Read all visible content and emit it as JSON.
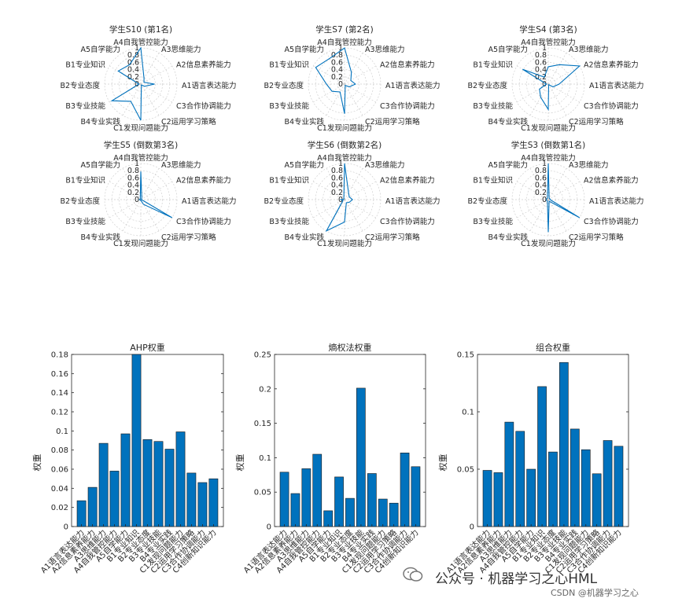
{
  "radar_axes": [
    "A4自我管控能力",
    "A3思维能力",
    "A2信息素养能力",
    "A1语言表达能力",
    "C3合作协调能力",
    "C2运用学习策略",
    "C1发现问题能力",
    "B4专业实践",
    "B3专业技能",
    "B2专业态度",
    "B1专业知识",
    "A5自学能力"
  ],
  "radar_ticks": [
    "1",
    "0.8",
    "0.6",
    "0.4",
    "0.2",
    "0"
  ],
  "bar_categories": [
    "A1语言表达能力",
    "A2信息素养能力",
    "A3思维能力",
    "A4自我管控能力",
    "A5自学能力",
    "B1专业知识",
    "B2专业态度",
    "B3专业技能",
    "B4专业实践",
    "C1发现问题能力",
    "C2运用学习策略",
    "C3合作协调能力",
    "C4创新知识能力"
  ],
  "chart_data": [
    {
      "type": "radar",
      "title": "学生S10 (第1名)",
      "values": [
        1.0,
        0.18,
        0.1,
        0.38,
        0.12,
        0.03,
        1.0,
        0.55,
        0.92,
        0.05,
        0.72,
        0.62
      ],
      "color": "#0072BD"
    },
    {
      "type": "radar",
      "title": "学生S7 (第2名)",
      "values": [
        1.0,
        0.38,
        0.2,
        0.3,
        0.15,
        0.04,
        0.82,
        0.25,
        0.4,
        0.5,
        0.92,
        0.82
      ],
      "color": "#0072BD"
    },
    {
      "type": "radar",
      "title": "学生S4 (第3名)",
      "values": [
        0.48,
        0.62,
        1.0,
        0.3,
        0.15,
        0.02,
        0.7,
        0.42,
        0.28,
        0.05,
        0.82,
        0.22
      ],
      "color": "#0072BD"
    },
    {
      "type": "radar",
      "title": "学生S5 (倒数第3名)",
      "values": [
        0.78,
        0.05,
        0.02,
        0.02,
        1.0,
        0.15,
        0.02,
        0.02,
        0.02,
        0.04,
        0.02,
        0.03
      ],
      "color": "#0072BD"
    },
    {
      "type": "radar",
      "title": "学生S6 (倒数第2名)",
      "values": [
        1.0,
        0.22,
        0.15,
        0.22,
        0.15,
        0.1,
        0.62,
        1.0,
        0.05,
        0.1,
        0.02,
        0.04
      ],
      "color": "#0072BD"
    },
    {
      "type": "radar",
      "title": "学生S3 (倒数第1名)",
      "values": [
        1.0,
        0.05,
        0.05,
        0.05,
        1.0,
        0.05,
        0.9,
        0.05,
        0.05,
        0.05,
        0.05,
        0.05
      ],
      "color": "#0072BD"
    },
    {
      "type": "bar",
      "title": "AHP权重",
      "ylabel": "权重",
      "ylim": [
        0,
        0.18
      ],
      "ticks": [
        0,
        0.02,
        0.04,
        0.06,
        0.08,
        0.1,
        0.12,
        0.14,
        0.16,
        0.18
      ],
      "values": [
        0.027,
        0.041,
        0.087,
        0.058,
        0.097,
        0.18,
        0.091,
        0.089,
        0.081,
        0.099,
        0.056,
        0.046,
        0.05
      ],
      "color": "#0072BD"
    },
    {
      "type": "bar",
      "title": "熵权法权重",
      "ylabel": "权重",
      "ylim": [
        0,
        0.25
      ],
      "ticks": [
        0,
        0.05,
        0.1,
        0.15,
        0.2,
        0.25
      ],
      "values": [
        0.079,
        0.048,
        0.084,
        0.105,
        0.023,
        0.072,
        0.041,
        0.201,
        0.077,
        0.04,
        0.034,
        0.107,
        0.087
      ],
      "color": "#0072BD"
    },
    {
      "type": "bar",
      "title": "组合权重",
      "ylabel": "权重",
      "ylim": [
        0,
        0.15
      ],
      "ticks": [
        0,
        0.05,
        0.1,
        0.15
      ],
      "values": [
        0.049,
        0.047,
        0.091,
        0.083,
        0.05,
        0.122,
        0.065,
        0.143,
        0.085,
        0.067,
        0.046,
        0.075,
        0.07
      ],
      "color": "#0072BD"
    }
  ],
  "watermark": {
    "main": "公众号 · 机器学习之心HML",
    "sub": "CSDN @机器学习之心"
  }
}
